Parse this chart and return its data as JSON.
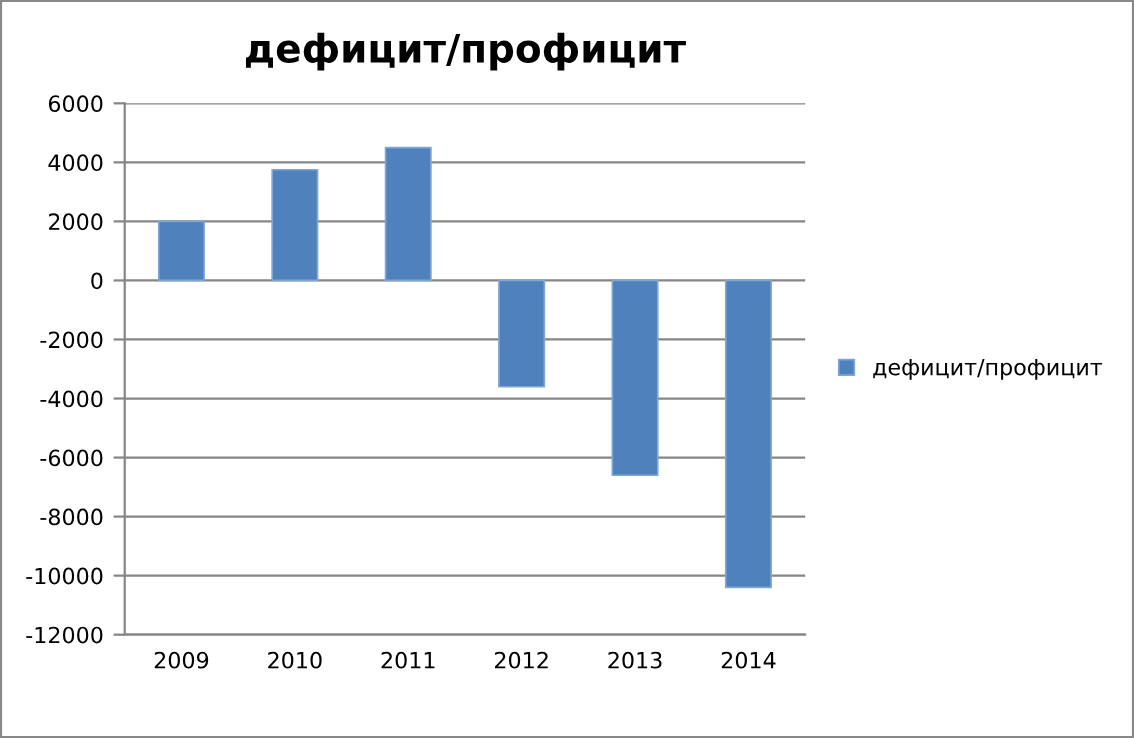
{
  "chart_data": {
    "type": "bar",
    "title": "дефицит/профицит",
    "categories": [
      "2009",
      "2010",
      "2011",
      "2012",
      "2013",
      "2014"
    ],
    "series": [
      {
        "name": "дефицит/профицит",
        "color": "#4f81bd",
        "values": [
          2000,
          3750,
          4500,
          -3600,
          -6600,
          -10400
        ]
      }
    ],
    "ylim": [
      -12000,
      6000
    ],
    "yticks": [
      -12000,
      -10000,
      -8000,
      -6000,
      -4000,
      -2000,
      0,
      2000,
      4000,
      6000
    ],
    "grid": "y",
    "legend": "right"
  }
}
